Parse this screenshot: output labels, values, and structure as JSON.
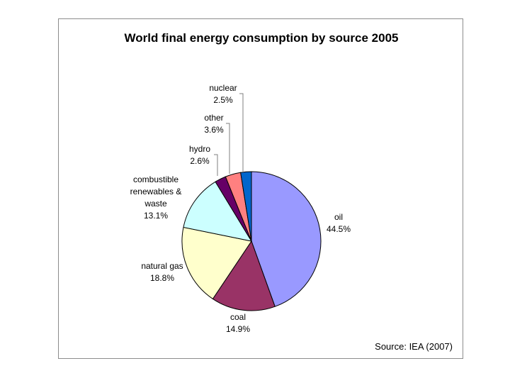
{
  "chart_data": {
    "type": "pie",
    "title": "World final energy consumption by source 2005",
    "source_note": "Source: IEA (2007)",
    "slices": [
      {
        "name": "oil",
        "label_lines": [
          "oil"
        ],
        "value_text": "44.5%",
        "value": 44.5,
        "color": "#9999FF"
      },
      {
        "name": "coal",
        "label_lines": [
          "coal"
        ],
        "value_text": "14.9%",
        "value": 14.9,
        "color": "#993366"
      },
      {
        "name": "natural gas",
        "label_lines": [
          "natural gas"
        ],
        "value_text": "18.8%",
        "value": 18.8,
        "color": "#FFFFCC"
      },
      {
        "name": "combustible renewables & waste",
        "label_lines": [
          "combustible",
          "renewables &",
          "waste"
        ],
        "value_text": "13.1%",
        "value": 13.1,
        "color": "#CCFFFF"
      },
      {
        "name": "hydro",
        "label_lines": [
          "hydro"
        ],
        "value_text": "2.6%",
        "value": 2.6,
        "color": "#660066"
      },
      {
        "name": "other",
        "label_lines": [
          "other"
        ],
        "value_text": "3.6%",
        "value": 3.6,
        "color": "#FF8080"
      },
      {
        "name": "nuclear",
        "label_lines": [
          "nuclear"
        ],
        "value_text": "2.5%",
        "value": 2.5,
        "color": "#0066CC"
      }
    ]
  }
}
